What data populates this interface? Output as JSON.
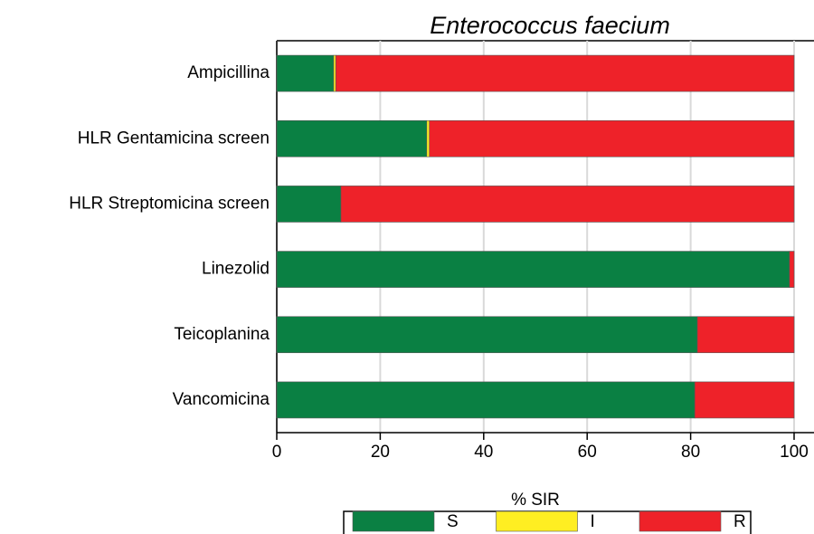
{
  "chart_data": {
    "type": "stacked_barh",
    "title": "Enterococcus faecium",
    "categories": [
      "Ampicillina",
      "HLR Gentamicina screen",
      "HLR Streptomicina screen",
      "Linezolid",
      "Teicoplanina",
      "Vancomicina"
    ],
    "series": [
      {
        "name": "S",
        "color": "#0a8043",
        "values": [
          11.0,
          29.0,
          12.4,
          99.1,
          81.3,
          80.8
        ]
      },
      {
        "name": "I",
        "color": "#ffee22",
        "values": [
          0.4,
          0.5,
          0,
          0,
          0,
          0
        ]
      },
      {
        "name": "R",
        "color": "#ee2229",
        "values": [
          88.6,
          70.5,
          87.6,
          0.9,
          18.7,
          19.2
        ]
      }
    ],
    "xlabel": "% SIR",
    "xlim": [
      0,
      100
    ],
    "xticks": [
      0,
      20,
      40,
      60,
      80,
      100
    ],
    "grid": true
  }
}
